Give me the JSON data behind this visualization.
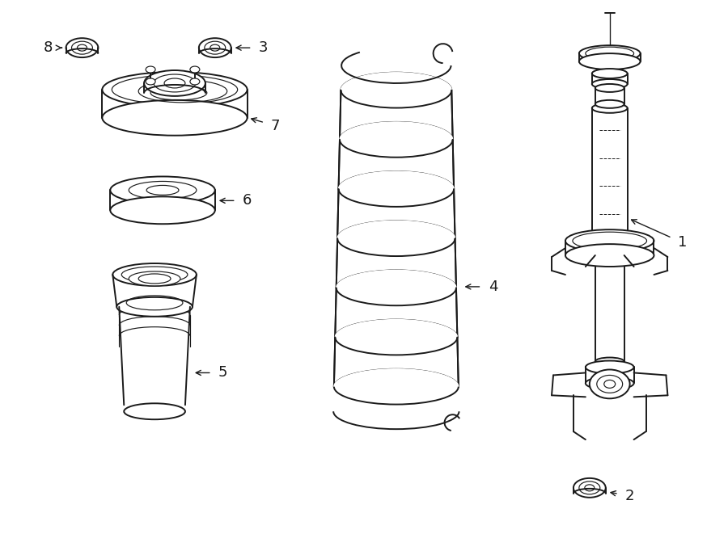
{
  "bg_color": "#ffffff",
  "lc": "#1a1a1a",
  "lw": 1.4,
  "tlw": 0.85,
  "fig_w": 9.0,
  "fig_h": 6.61,
  "dpi": 100
}
